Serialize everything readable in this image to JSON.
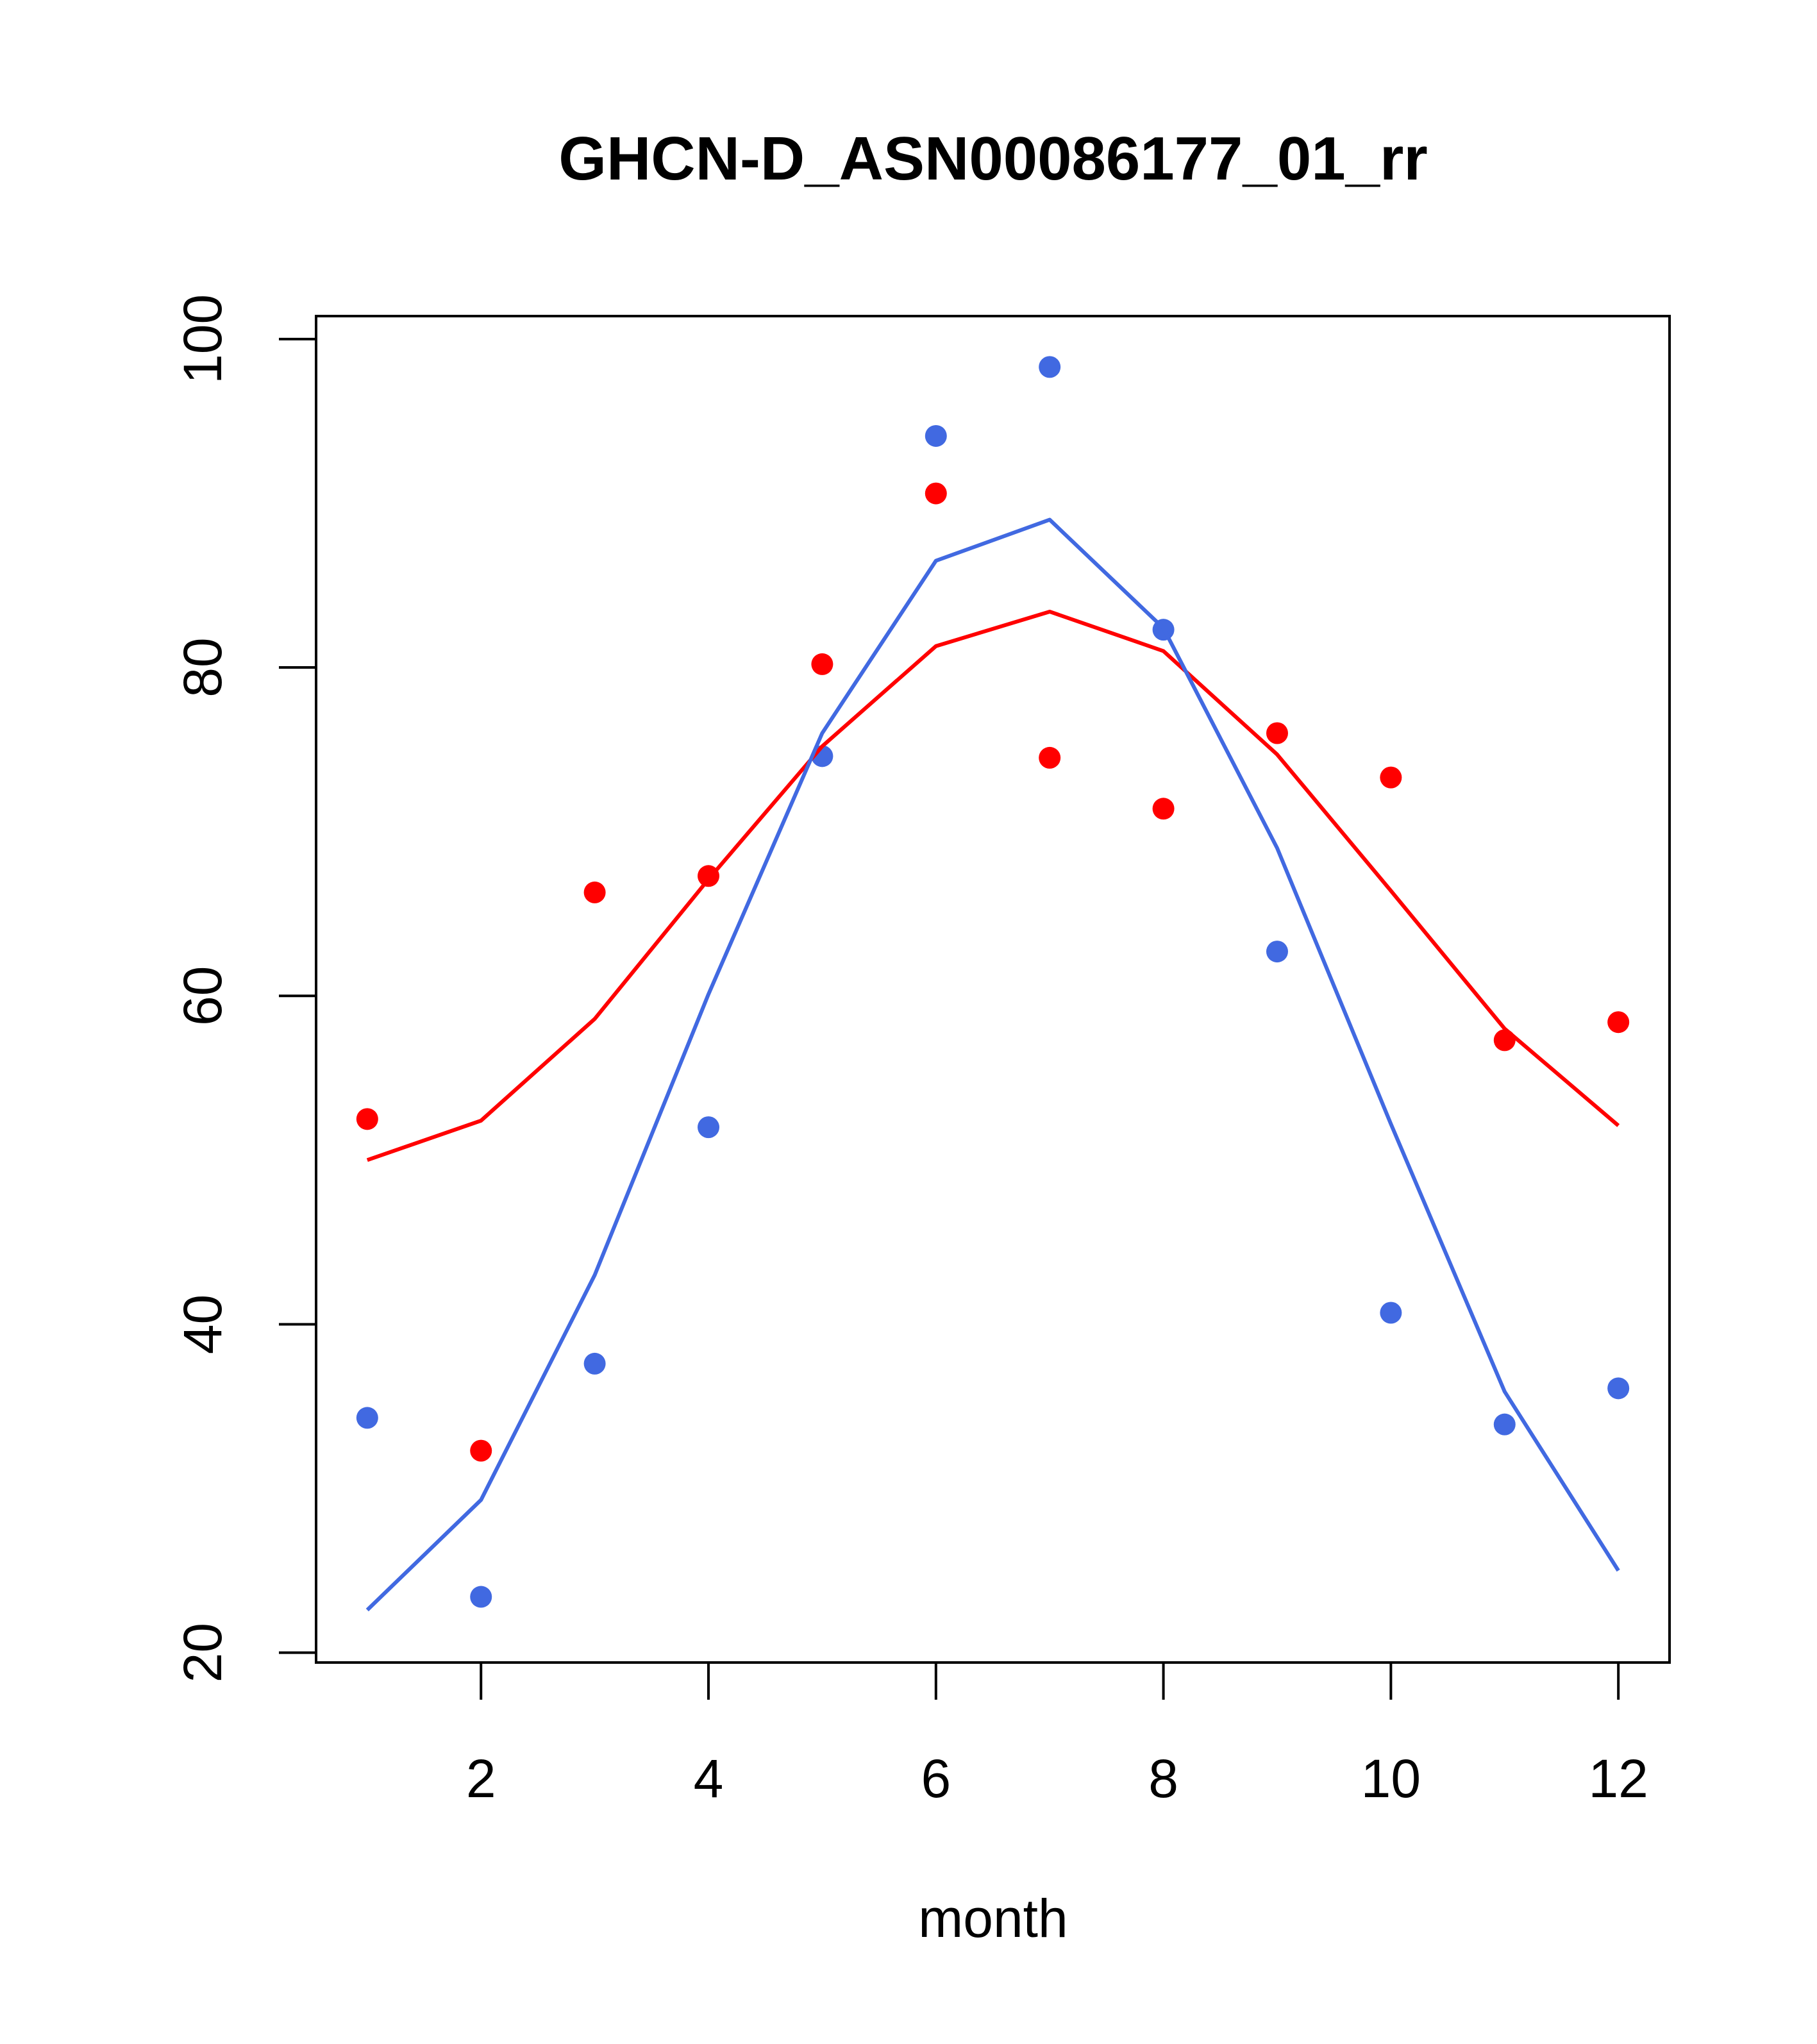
{
  "chart_data": {
    "type": "line",
    "title": "GHCN-D_ASN00086177_01_rr",
    "xlabel": "month",
    "ylabel": "",
    "xlim": [
      0.55,
      12.45
    ],
    "ylim": [
      19.4,
      101.4
    ],
    "x": [
      1,
      2,
      3,
      4,
      5,
      6,
      7,
      8,
      9,
      10,
      11,
      12
    ],
    "xticks": [
      2,
      4,
      6,
      8,
      10,
      12
    ],
    "xtick_labels": [
      "2",
      "4",
      "6",
      "8",
      "10",
      "12"
    ],
    "yticks": [
      20,
      40,
      60,
      80,
      100
    ],
    "ytick_labels": [
      "20",
      "40",
      "60",
      "80",
      "100"
    ],
    "grid": false,
    "series": [
      {
        "kind": "points",
        "color": "#ff0000",
        "values": [
          52.5,
          32.3,
          66.3,
          67.3,
          80.2,
          90.6,
          74.5,
          71.4,
          76.0,
          73.3,
          57.3,
          58.4
        ]
      },
      {
        "kind": "points",
        "color": "#4169e1",
        "values": [
          34.3,
          23.4,
          37.6,
          52.0,
          74.6,
          94.1,
          98.3,
          82.3,
          62.7,
          40.7,
          33.9,
          36.1
        ]
      },
      {
        "kind": "line",
        "color": "#ff0000",
        "values": [
          50.0,
          52.4,
          58.6,
          67.1,
          75.2,
          81.3,
          83.4,
          81.0,
          74.7,
          66.4,
          58.0,
          52.1
        ]
      },
      {
        "kind": "line",
        "color": "#4169e1",
        "values": [
          22.6,
          29.3,
          43.0,
          60.1,
          76.0,
          86.5,
          89.0,
          82.4,
          69.0,
          52.2,
          35.9,
          25.0
        ]
      }
    ]
  }
}
